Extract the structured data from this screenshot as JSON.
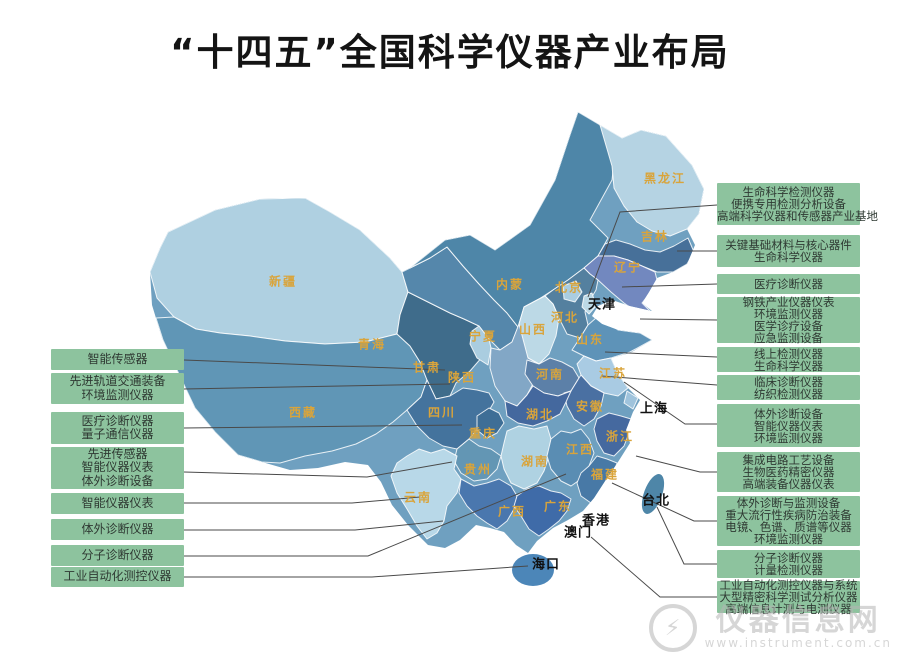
{
  "title": "“十四五”全国科学仪器产业布局",
  "colors": {
    "label_box_green": "#8dc39e",
    "connector_line": "#4a4a4a",
    "province_label_orange": "#d9a43b",
    "municipality_label_black": "#111111",
    "map_blues": [
      "#AFD0E1",
      "#BCD9E6",
      "#A9CBE3",
      "#82A7C6",
      "#7288BF",
      "#6096B6",
      "#5E93B8",
      "#5587AB",
      "#4E86A8",
      "#4A77AE",
      "#477099",
      "#45699F",
      "#44739D",
      "#3F6C8B",
      "#3F6BA8",
      "#3E6E96"
    ]
  },
  "map": {
    "provinces": [
      {
        "id": "heilongjiang",
        "name": "黑龙江",
        "label_type": "province"
      },
      {
        "id": "jilin",
        "name": "吉林",
        "label_type": "province"
      },
      {
        "id": "liaoning",
        "name": "辽宁",
        "label_type": "province"
      },
      {
        "id": "xinjiang",
        "name": "新疆",
        "label_type": "province"
      },
      {
        "id": "neimeng",
        "name": "内蒙",
        "label_type": "province"
      },
      {
        "id": "beijing",
        "name": "北京",
        "label_type": "province"
      },
      {
        "id": "hebei",
        "name": "河北",
        "label_type": "province"
      },
      {
        "id": "shanxi",
        "name": "山西",
        "label_type": "province"
      },
      {
        "id": "shandong",
        "name": "山东",
        "label_type": "province"
      },
      {
        "id": "ningxia",
        "name": "宁夏",
        "label_type": "province"
      },
      {
        "id": "qinghai",
        "name": "青海",
        "label_type": "province"
      },
      {
        "id": "gansu",
        "name": "甘肃",
        "label_type": "province"
      },
      {
        "id": "shaanxi",
        "name": "陕西",
        "label_type": "province"
      },
      {
        "id": "henan",
        "name": "河南",
        "label_type": "province"
      },
      {
        "id": "jiangsu",
        "name": "江苏",
        "label_type": "province"
      },
      {
        "id": "sichuan",
        "name": "四川",
        "label_type": "province"
      },
      {
        "id": "hubei",
        "name": "湖北",
        "label_type": "province"
      },
      {
        "id": "anhui",
        "name": "安徽",
        "label_type": "province"
      },
      {
        "id": "chongqing",
        "name": "重庆",
        "label_type": "province"
      },
      {
        "id": "zhejiang",
        "name": "浙江",
        "label_type": "province"
      },
      {
        "id": "jiangxi",
        "name": "江西",
        "label_type": "province"
      },
      {
        "id": "guizhou",
        "name": "贵州",
        "label_type": "province"
      },
      {
        "id": "hunan",
        "name": "湖南",
        "label_type": "province"
      },
      {
        "id": "fujian",
        "name": "福建",
        "label_type": "province"
      },
      {
        "id": "xizang",
        "name": "西藏",
        "label_type": "province"
      },
      {
        "id": "yunnan",
        "name": "云南",
        "label_type": "province"
      },
      {
        "id": "guangxi",
        "name": "广西",
        "label_type": "province"
      },
      {
        "id": "guangdong",
        "name": "广东",
        "label_type": "province"
      },
      {
        "id": "tianjin",
        "name": "天津",
        "label_type": "municipality"
      },
      {
        "id": "shanghai",
        "name": "上海",
        "label_type": "municipality"
      },
      {
        "id": "hongkong",
        "name": "香港",
        "label_type": "municipality"
      },
      {
        "id": "macau",
        "name": "澳门",
        "label_type": "municipality"
      },
      {
        "id": "taipei",
        "name": "台北",
        "label_type": "municipality"
      },
      {
        "id": "haikou",
        "name": "海口",
        "label_type": "municipality"
      }
    ]
  },
  "industry_labels": {
    "left": [
      {
        "lines": [
          "智能传感器"
        ]
      },
      {
        "lines": [
          "先进轨道交通装备",
          "环境监测仪器"
        ]
      },
      {
        "lines": [
          "医疗诊断仪器",
          "量子通信仪器"
        ]
      },
      {
        "lines": [
          "先进传感器",
          "智能仪器仪表",
          "体外诊断设备"
        ]
      },
      {
        "lines": [
          "智能仪器仪表"
        ]
      },
      {
        "lines": [
          "体外诊断仪器"
        ]
      },
      {
        "lines": [
          "分子诊断仪器"
        ]
      },
      {
        "lines": [
          "工业自动化测控仪器"
        ]
      }
    ],
    "right": [
      {
        "lines": [
          "生命科学检测仪器",
          "便携专用检测分析设备",
          "高端科学仪器和传感器产业基地"
        ]
      },
      {
        "lines": [
          "关键基础材料与核心器件",
          "生命科学仪器"
        ]
      },
      {
        "lines": [
          "医疗诊断仪器"
        ]
      },
      {
        "lines": [
          "钢铁产业仪器仪表",
          "环境监测仪器",
          "医学诊疗设备",
          "应急监测设备"
        ]
      },
      {
        "lines": [
          "线上检测仪器",
          "生命科学仪器"
        ]
      },
      {
        "lines": [
          "临床诊断仪器",
          "纺织检测仪器"
        ]
      },
      {
        "lines": [
          "体外诊断设备",
          "智能仪器仪表",
          "环境监测仪器"
        ]
      },
      {
        "lines": [
          "集成电路工艺设备",
          "生物医药精密仪器",
          "高端装备仪器仪表"
        ]
      },
      {
        "lines": [
          "体外诊断与监测设备",
          "重大流行性疾病防治装备",
          "电镜、色谱、质谱等仪器",
          "环境监测仪器"
        ]
      },
      {
        "lines": [
          "分子诊断仪器",
          "计量检测仪器"
        ]
      },
      {
        "lines": [
          "工业自动化测控仪器与系统",
          "大型精密科学测试分析仪器",
          "高端信息计测与电测仪器"
        ]
      }
    ]
  },
  "watermark": {
    "site_name": "仪器信息网",
    "url_text": "www.instrument.com.cn",
    "logo_glyph": "⚡"
  }
}
